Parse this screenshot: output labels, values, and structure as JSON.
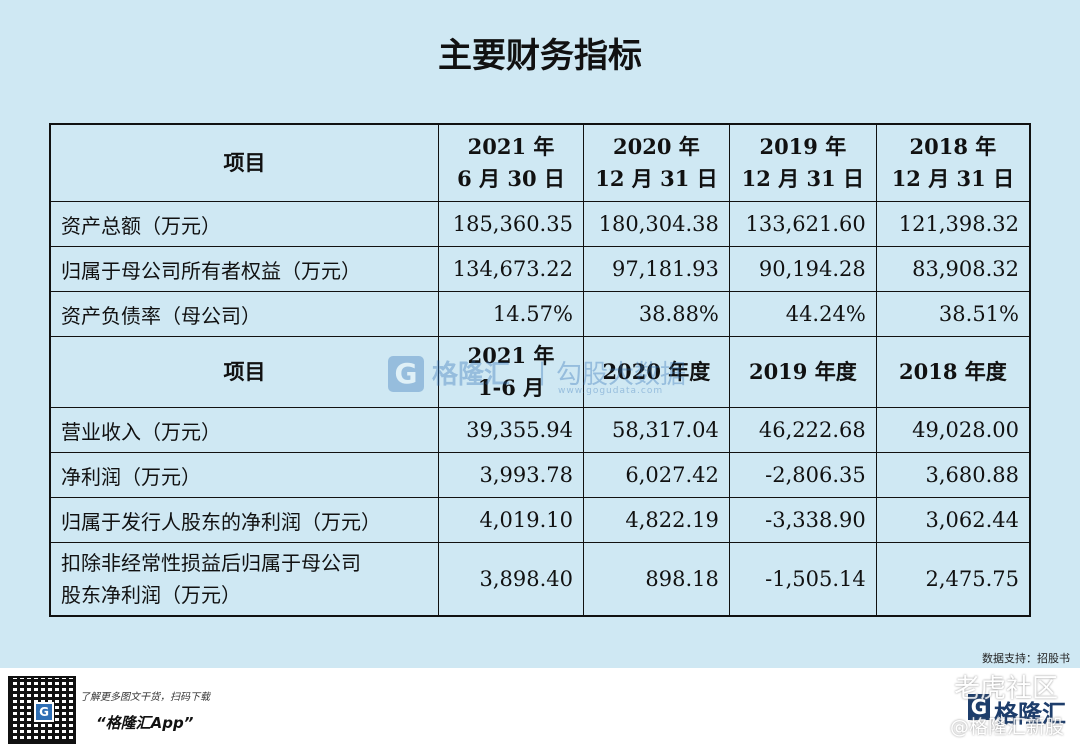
{
  "title": "主要财务指标",
  "section1": {
    "header": [
      "项目",
      "2021 年\n6 月 30 日",
      "2020 年\n12 月 31 日",
      "2019 年\n12 月 31 日",
      "2018 年\n12 月 31 日"
    ],
    "rows": [
      {
        "label": "资产总额（万元）",
        "values": [
          "185,360.35",
          "180,304.38",
          "133,621.60",
          "121,398.32"
        ]
      },
      {
        "label": "归属于母公司所有者权益（万元）",
        "values": [
          "134,673.22",
          "97,181.93",
          "90,194.28",
          "83,908.32"
        ]
      },
      {
        "label": "资产负债率（母公司）",
        "values": [
          "14.57%",
          "38.88%",
          "44.24%",
          "38.51%"
        ]
      }
    ]
  },
  "section2": {
    "header": [
      "项目",
      "2021 年\n1-6 月",
      "2020 年度",
      "2019 年度",
      "2018 年度"
    ],
    "rows": [
      {
        "label": "营业收入（万元）",
        "values": [
          "39,355.94",
          "58,317.04",
          "46,222.68",
          "49,028.00"
        ]
      },
      {
        "label": "净利润（万元）",
        "values": [
          "3,993.78",
          "6,027.42",
          "-2,806.35",
          "3,680.88"
        ]
      },
      {
        "label": "归属于发行人股东的净利润（万元）",
        "values": [
          "4,019.10",
          "4,822.19",
          "-3,338.90",
          "3,062.44"
        ]
      },
      {
        "label": "扣除非经常性损益后归属于母公司\n股东净利润（万元）",
        "values": [
          "3,898.40",
          "898.18",
          "-1,505.14",
          "2,475.75"
        ]
      }
    ]
  },
  "watermark": {
    "logo": "G",
    "brand": "格隆汇",
    "sep": "|",
    "sub": "勾股大数据",
    "site": "www.gogudata.com"
  },
  "source": "数据支持：招股书",
  "footer": {
    "qr_logo": "G",
    "promo": "了解更多图文干货，扫码下载",
    "app": "“格隆汇App”",
    "brand_logo": "G",
    "brand": "格隆汇",
    "wm_community": "老虎社区",
    "wm_author": "@格隆汇新股"
  },
  "colors": {
    "background": "#cfe8f3",
    "brand_blue": "#2f6fb5",
    "footer": "#ffffff"
  }
}
